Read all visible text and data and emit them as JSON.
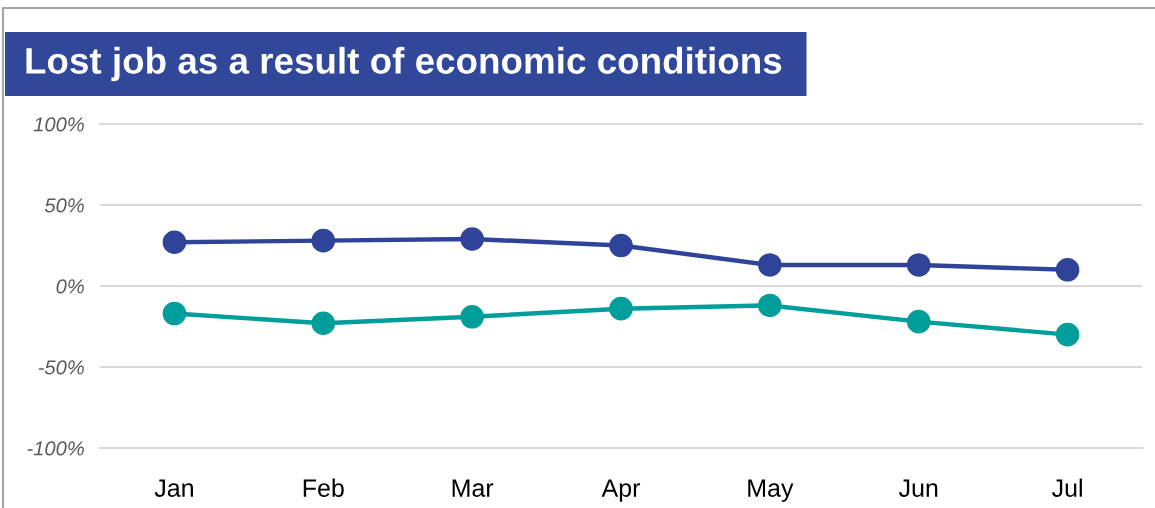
{
  "chart_data": {
    "type": "line",
    "title": "Lost job as a result of economic conditions",
    "categories": [
      "Jan",
      "Feb",
      "Mar",
      "Apr",
      "May",
      "Jun",
      "Jul"
    ],
    "series": [
      {
        "color": "#2f4499",
        "values": [
          27,
          28,
          29,
          25,
          13,
          13,
          10
        ]
      },
      {
        "color": "#009e9a",
        "values": [
          -17,
          -23,
          -19,
          -14,
          -12,
          -22,
          -30
        ]
      }
    ],
    "ylim": [
      -100,
      100
    ],
    "yticks": [
      {
        "value": -100,
        "label": "-100%"
      },
      {
        "value": -50,
        "label": "-50%"
      },
      {
        "value": 0,
        "label": "0%"
      },
      {
        "value": 50,
        "label": "50%"
      },
      {
        "value": 100,
        "label": "100%"
      }
    ],
    "grid": "y",
    "marker": "circle",
    "line_style": "solid"
  }
}
